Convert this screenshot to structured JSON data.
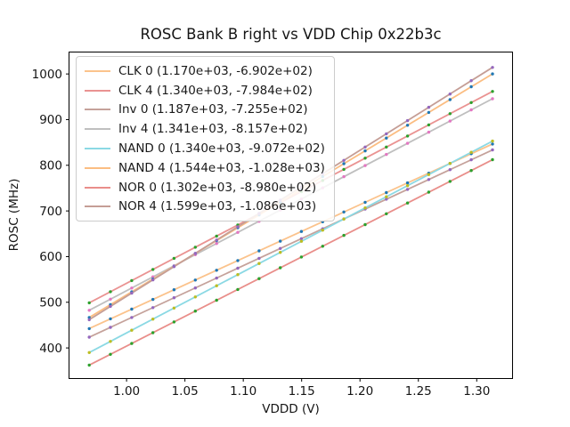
{
  "chart_data": {
    "type": "scatter",
    "title": "ROSC Bank B right vs VDD Chip 0x22b3c",
    "xlabel": "VDDD (V)",
    "ylabel": "ROSC (MHz)",
    "xlim": [
      0.9507,
      1.3307
    ],
    "ylim": [
      333,
      1048
    ],
    "x_ticks": [
      1.0,
      1.05,
      1.1,
      1.15,
      1.2,
      1.25,
      1.3
    ],
    "x_tick_labels": [
      "1.00",
      "1.05",
      "1.10",
      "1.15",
      "1.20",
      "1.25",
      "1.30"
    ],
    "y_ticks": [
      400,
      500,
      600,
      700,
      800,
      900,
      1000
    ],
    "y_tick_labels": [
      "400",
      "500",
      "600",
      "700",
      "800",
      "900",
      "1000"
    ],
    "grid": false,
    "background": "#ffffff",
    "legend_position": "upper left",
    "fit_model": "ROSC = slope * VDDD + intercept",
    "x_points": [
      0.968,
      0.9862,
      1.0044,
      1.0226,
      1.0407,
      1.0589,
      1.0771,
      1.0953,
      1.1135,
      1.1317,
      1.1498,
      1.168,
      1.1862,
      1.2044,
      1.2226,
      1.2407,
      1.2589,
      1.2771,
      1.2953,
      1.3135
    ],
    "series": [
      {
        "label": "CLK 0 (1.170e+03, -6.902e+02)",
        "name": "CLK 0",
        "slope": 1170.0,
        "intercept": -690.2,
        "line_color": "#fbc38c",
        "marker_color": "#1f77b4"
      },
      {
        "label": "CLK 4 (1.340e+03, -7.984e+02)",
        "name": "CLK 4",
        "slope": 1340.0,
        "intercept": -798.4,
        "line_color": "#ea9392",
        "marker_color": "#2ca02c"
      },
      {
        "label": "Inv 0 (1.187e+03, -7.255e+02)",
        "name": "Inv 0",
        "slope": 1187.0,
        "intercept": -725.5,
        "line_color": "#c5a29b",
        "marker_color": "#9467bd"
      },
      {
        "label": "Inv 4 (1.341e+03, -8.157e+02)",
        "name": "Inv 4",
        "slope": 1341.0,
        "intercept": -815.7,
        "line_color": "#bfbfbf",
        "marker_color": "#e377c2"
      },
      {
        "label": "NAND 0 (1.340e+03, -9.072e+02)",
        "name": "NAND 0",
        "slope": 1340.0,
        "intercept": -907.2,
        "line_color": "#8bd9e4",
        "marker_color": "#bcbd22"
      },
      {
        "label": "NAND 4 (1.544e+03, -1.028e+03)",
        "name": "NAND 4",
        "slope": 1544.0,
        "intercept": -1028.0,
        "line_color": "#fbbd82",
        "marker_color": "#1f77b4"
      },
      {
        "label": "NOR 0 (1.302e+03, -8.980e+02)",
        "name": "NOR 0",
        "slope": 1302.0,
        "intercept": -898.0,
        "line_color": "#e98e8a",
        "marker_color": "#2ca02c"
      },
      {
        "label": "NOR 4 (1.599e+03, -1.086e+03)",
        "name": "NOR 4",
        "slope": 1599.0,
        "intercept": -1086.0,
        "line_color": "#c59e96",
        "marker_color": "#9467bd"
      }
    ]
  }
}
